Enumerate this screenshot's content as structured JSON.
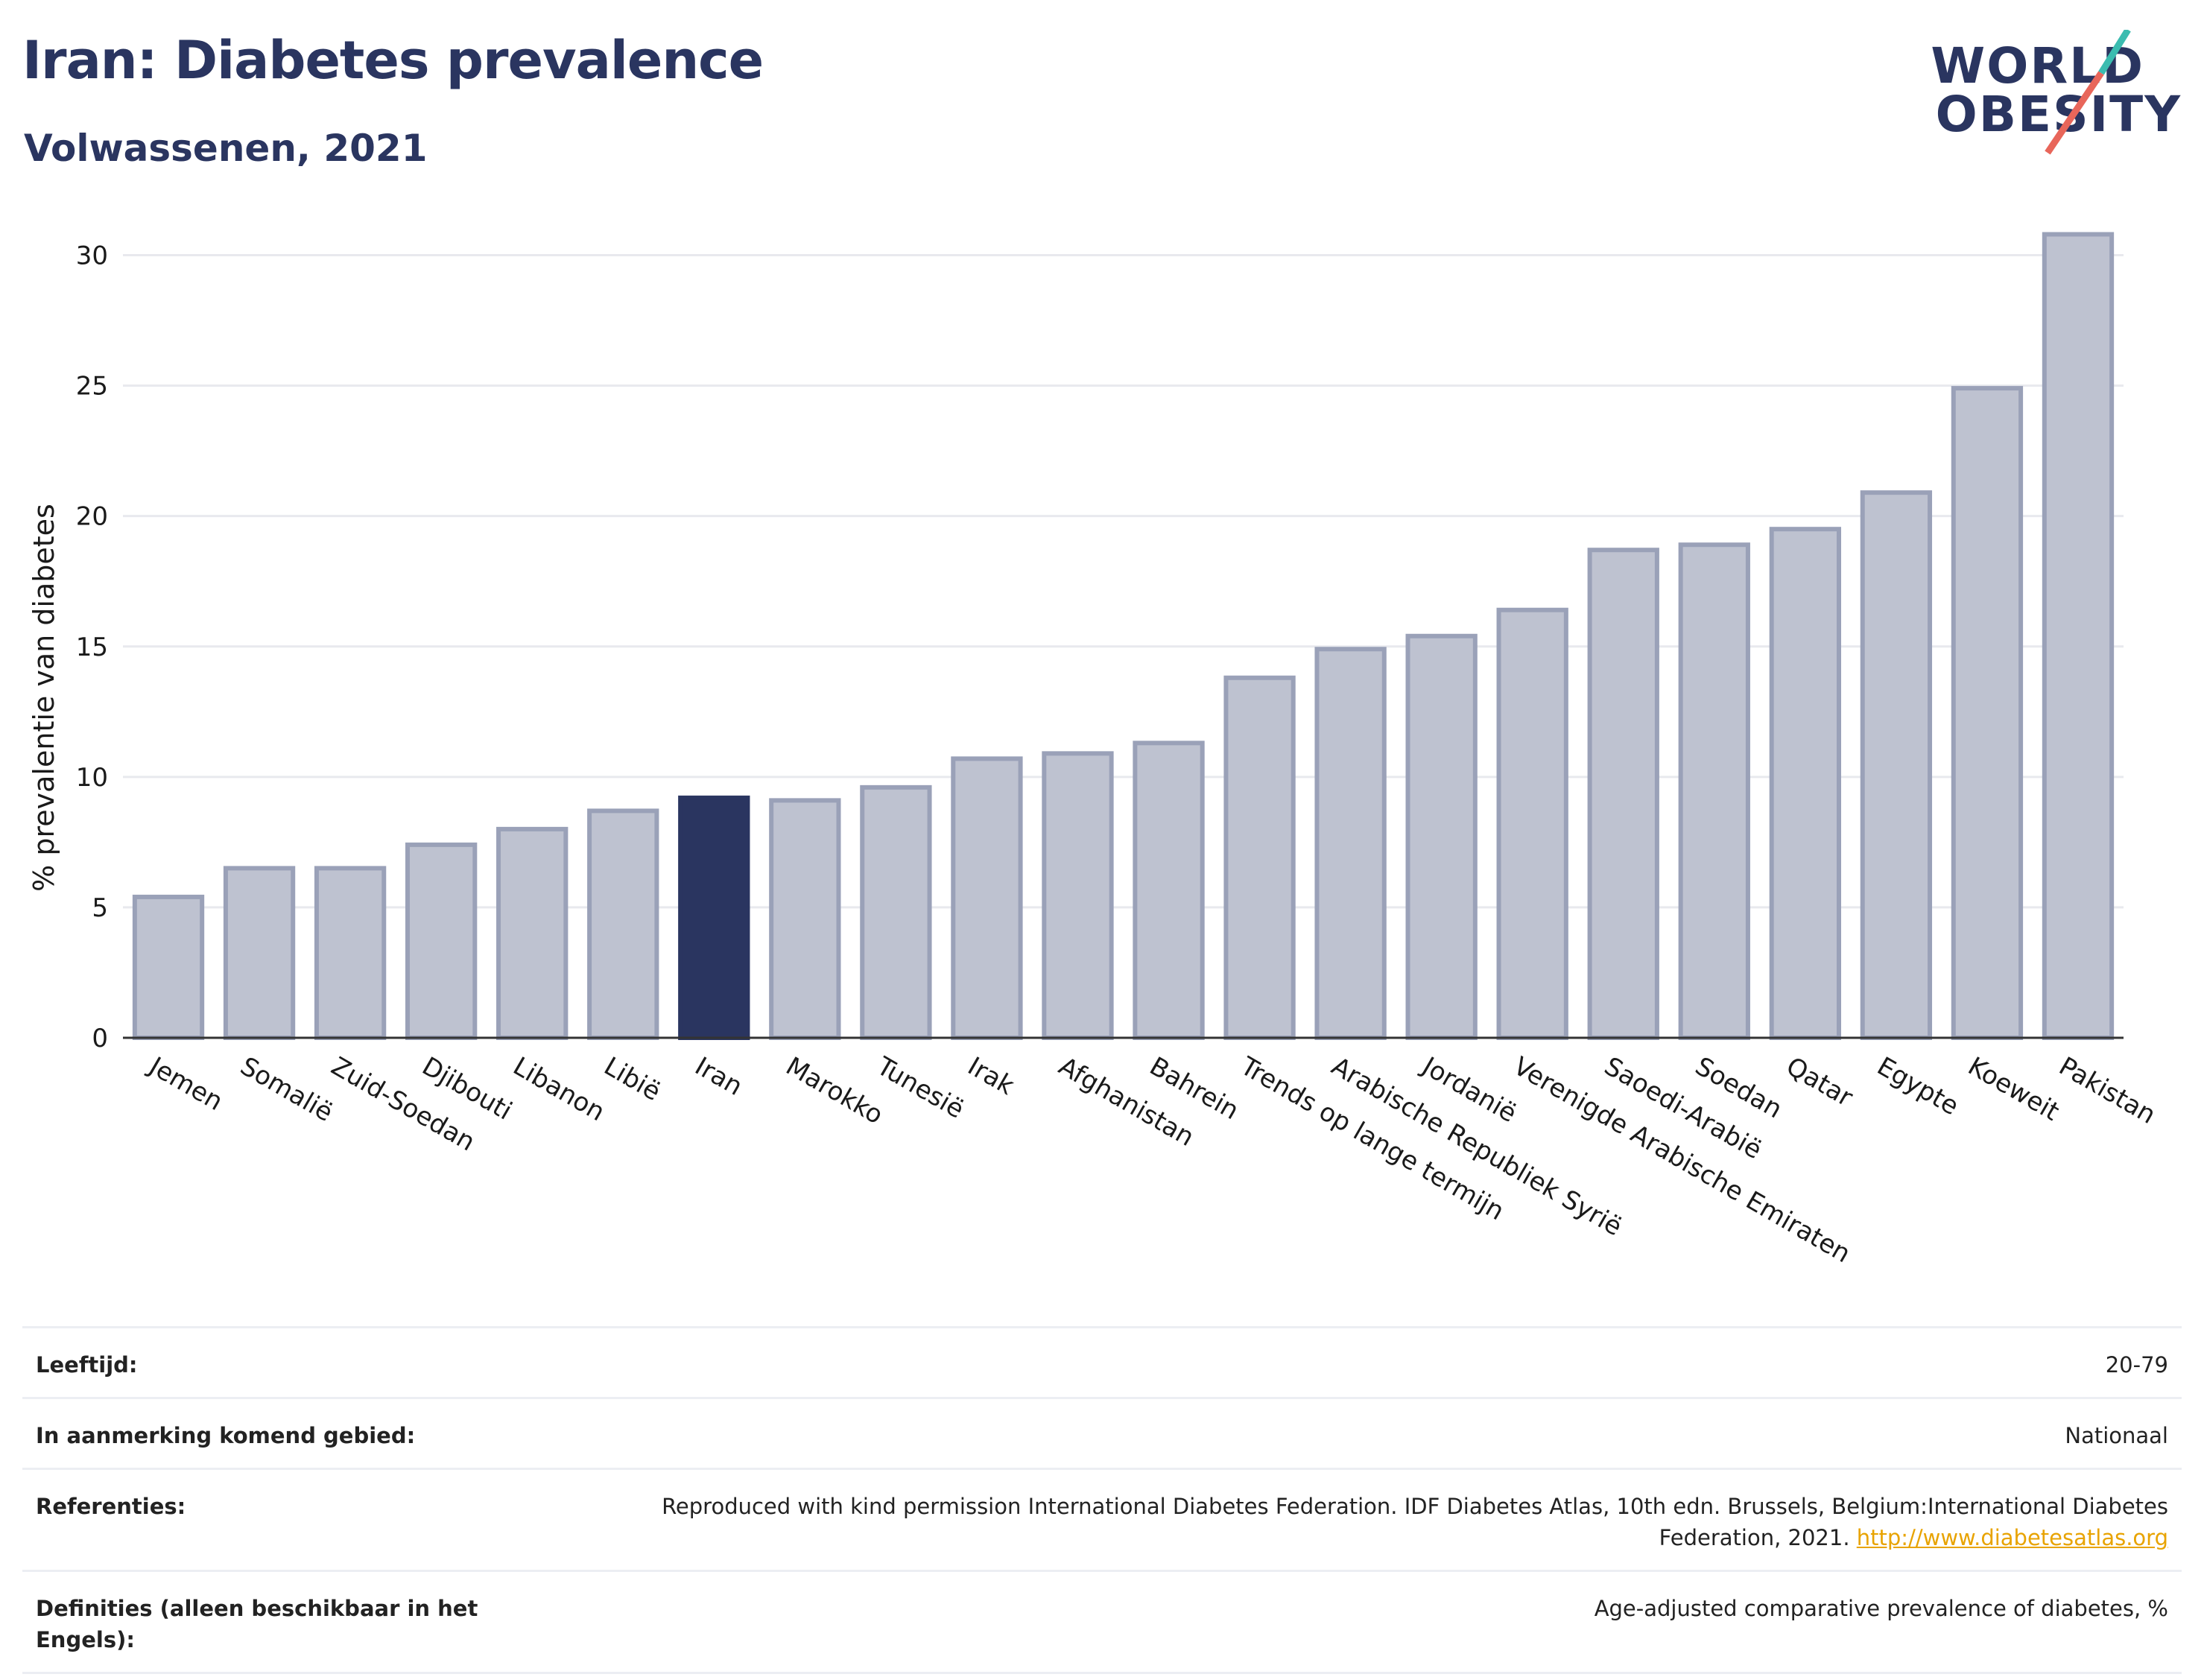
{
  "header": {
    "title": "Iran: Diabetes prevalence",
    "subtitle": "Volwassenen, 2021"
  },
  "logo": {
    "line1": "WORLD",
    "line2": "OBESITY",
    "colors": {
      "text": "#2a3560",
      "slash_top": "#3bbcb0",
      "slash_bottom": "#e8665a"
    }
  },
  "colors": {
    "highlight": "#2a3560",
    "bar": "#bec2d0",
    "bar_border": "#9aa1b8",
    "grid": "#e8e9ee"
  },
  "chart_data": {
    "type": "bar",
    "ylabel": "% prevalentie van diabetes",
    "ylim": [
      0,
      31.5
    ],
    "yticks": [
      0,
      5,
      10,
      15,
      20,
      25,
      30
    ],
    "grid": true,
    "highlight": "Iran",
    "categories": [
      "Jemen",
      "Somalië",
      "Zuid-Soedan",
      "Djibouti",
      "Libanon",
      "Libië",
      "Iran",
      "Marokko",
      "Tunesië",
      "Irak",
      "Afghanistan",
      "Bahrein",
      "Trends op lange termijn",
      "Arabische Republiek Syrië",
      "Jordanië",
      "Verenigde Arabische Emiraten",
      "Saoedi-Arabië",
      "Soedan",
      "Qatar",
      "Egypte",
      "Koeweit",
      "Pakistan"
    ],
    "values": [
      5.4,
      6.5,
      6.5,
      7.4,
      8.0,
      8.7,
      9.2,
      9.1,
      9.6,
      10.7,
      10.9,
      11.3,
      13.8,
      14.9,
      15.4,
      16.4,
      18.7,
      18.9,
      19.5,
      20.9,
      24.9,
      30.8
    ]
  },
  "meta": [
    {
      "label": "Leeftijd:",
      "value": "20-79"
    },
    {
      "label": "In aanmerking komend gebied:",
      "value": "Nationaal"
    },
    {
      "label": "Referenties:",
      "value": "Reproduced with kind permission International Diabetes Federation.  IDF Diabetes Atlas, 10th edn. Brussels, Belgium:International Diabetes Federation, 2021.",
      "link": "http://www.diabetesatlas.org"
    },
    {
      "label": "Definities (alleen beschikbaar in het Engels):",
      "value": "Age-adjusted comparative prevalence of diabetes, %"
    }
  ]
}
